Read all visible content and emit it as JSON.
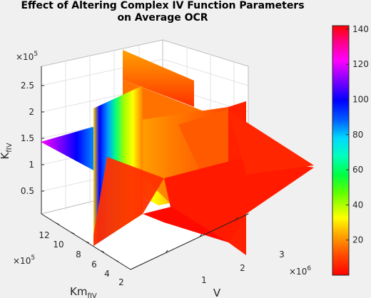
{
  "chart_data": {
    "type": "heatmap",
    "subtype": "3d-slice",
    "title_lines": [
      "Effect of Altering Complex IV Function Parameters",
      "on Average OCR"
    ],
    "axes": {
      "x": {
        "label": "V",
        "multiplier": "×10",
        "multiplier_exp": "6",
        "range": [
          0,
          3500000
        ],
        "ticks": [
          1,
          2,
          3
        ]
      },
      "y": {
        "label": "Km",
        "label_sub": "fIV",
        "multiplier": "×10",
        "multiplier_exp": "5",
        "range": [
          0,
          1400000
        ],
        "ticks": [
          2,
          4,
          6,
          8,
          10,
          12
        ]
      },
      "z": {
        "label": "K",
        "label_sub": "fIV",
        "multiplier": "×10",
        "multiplier_exp": "5",
        "range": [
          0,
          280000
        ],
        "ticks": [
          0.5,
          1,
          1.5,
          2,
          2.5
        ]
      }
    },
    "colorbar": {
      "range": [
        0,
        142
      ],
      "ticks": [
        20,
        40,
        60,
        80,
        100,
        120,
        140
      ],
      "colormap": "hsv-reversed"
    },
    "slices": [
      {
        "plane": "x",
        "at": 2000000
      },
      {
        "plane": "y",
        "at": 1000000
      },
      {
        "plane": "z",
        "at": 150000
      }
    ],
    "grid": true,
    "box": true
  },
  "colors": {
    "background": "#f0f0f0",
    "axes_background": "#ffffff",
    "grid": "#dfdfdf",
    "text": "#262626",
    "high_value": "#ff0000"
  }
}
